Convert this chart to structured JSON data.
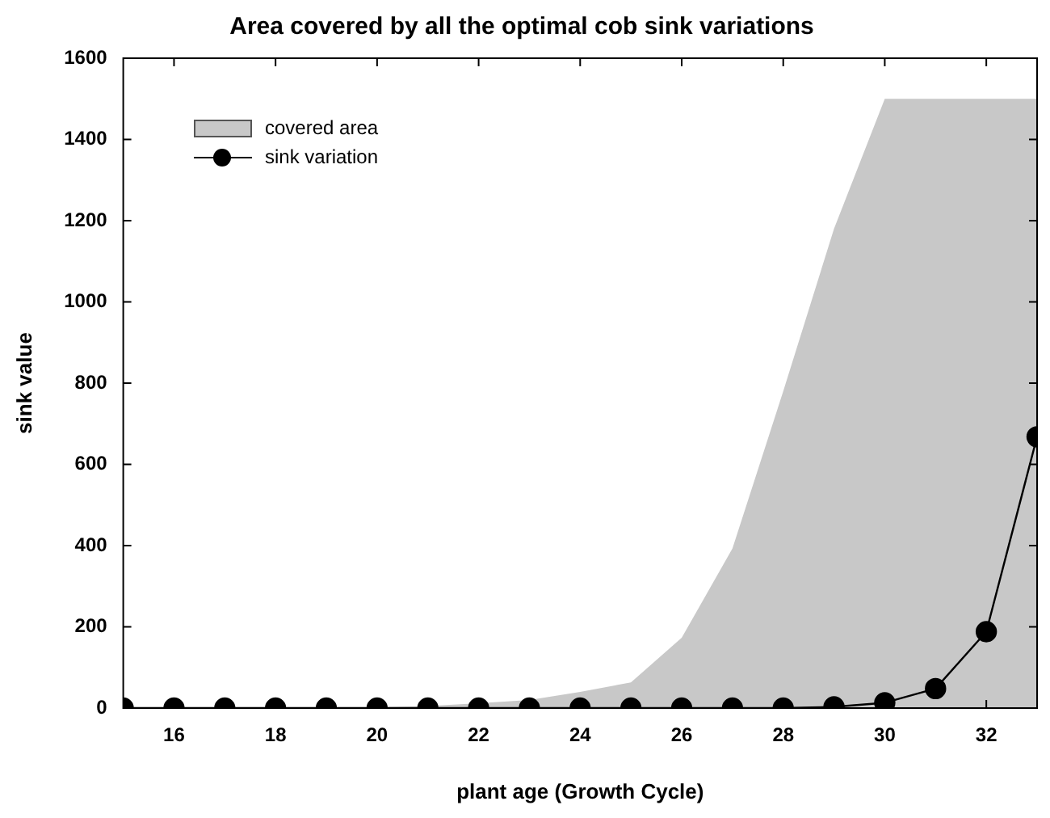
{
  "chart_data": {
    "type": "area",
    "title": "Area covered by all the optimal cob sink variations",
    "xlabel": "plant age (Growth Cycle)",
    "ylabel": "sink value",
    "x": [
      15,
      16,
      17,
      18,
      19,
      20,
      21,
      22,
      23,
      24,
      25,
      26,
      27,
      28,
      29,
      30,
      31,
      32,
      33
    ],
    "series": [
      {
        "name": "covered area",
        "color": "#c8c8c8",
        "marker": "none",
        "values": [
          0,
          0,
          0,
          0,
          0,
          2,
          5,
          12,
          20,
          40,
          63,
          173,
          393,
          780,
          1180,
          1500,
          1500,
          1500,
          1500
        ]
      },
      {
        "name": "sink variation",
        "type": "line",
        "color": "#000000",
        "marker": "circle",
        "line_style": "solid",
        "values": [
          0,
          0,
          0,
          0,
          0,
          0,
          0,
          0,
          0,
          0,
          0,
          0,
          0,
          0,
          3,
          13,
          48,
          188,
          668
        ]
      }
    ],
    "xlim": [
      15,
      33
    ],
    "xticks": [
      16,
      18,
      20,
      22,
      24,
      26,
      28,
      30,
      32
    ],
    "ylim": [
      0,
      1600
    ],
    "yticks": [
      0,
      200,
      400,
      600,
      800,
      1000,
      1200,
      1400,
      1600
    ],
    "grid": false,
    "legend": "top left"
  }
}
